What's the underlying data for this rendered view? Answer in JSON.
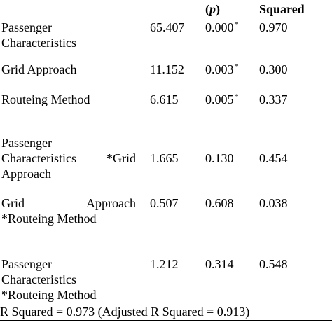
{
  "table": {
    "header": {
      "p_open": "(",
      "p_letter": "p",
      "p_close": ")",
      "squared": "Squared"
    },
    "rows": [
      {
        "effect_lines": [
          "Passenger",
          "Characteristics"
        ],
        "f": "65.407",
        "p": "0.000",
        "p_star": "*",
        "eta": "0.970"
      },
      {
        "effect_lines": [
          "Grid Approach"
        ],
        "f": "11.152",
        "p": "0.003",
        "p_star": "*",
        "eta": "0.300"
      },
      {
        "effect_lines": [
          "Routeing Method"
        ],
        "f": "6.615",
        "p": "0.005",
        "p_star": "*",
        "eta": "0.337"
      },
      {
        "effect_lines": [
          "Passenger",
          "Characteristics",
          "*Grid",
          "Approach"
        ],
        "f": "1.665",
        "p": "0.130",
        "p_star": "",
        "eta": "0.454"
      },
      {
        "effect_lines": [
          "Grid",
          "Approach",
          "*Routeing Method"
        ],
        "f": "0.507",
        "p": "0.608",
        "p_star": "",
        "eta": "0.038"
      },
      {
        "effect_lines": [
          "Passenger",
          "Characteristics",
          "*Routeing Method"
        ],
        "f": "1.212",
        "p": "0.314",
        "p_star": "",
        "eta": "0.548"
      }
    ],
    "footer_note": "R Squared = 0.973 (Adjusted R Squared = 0.913)"
  }
}
